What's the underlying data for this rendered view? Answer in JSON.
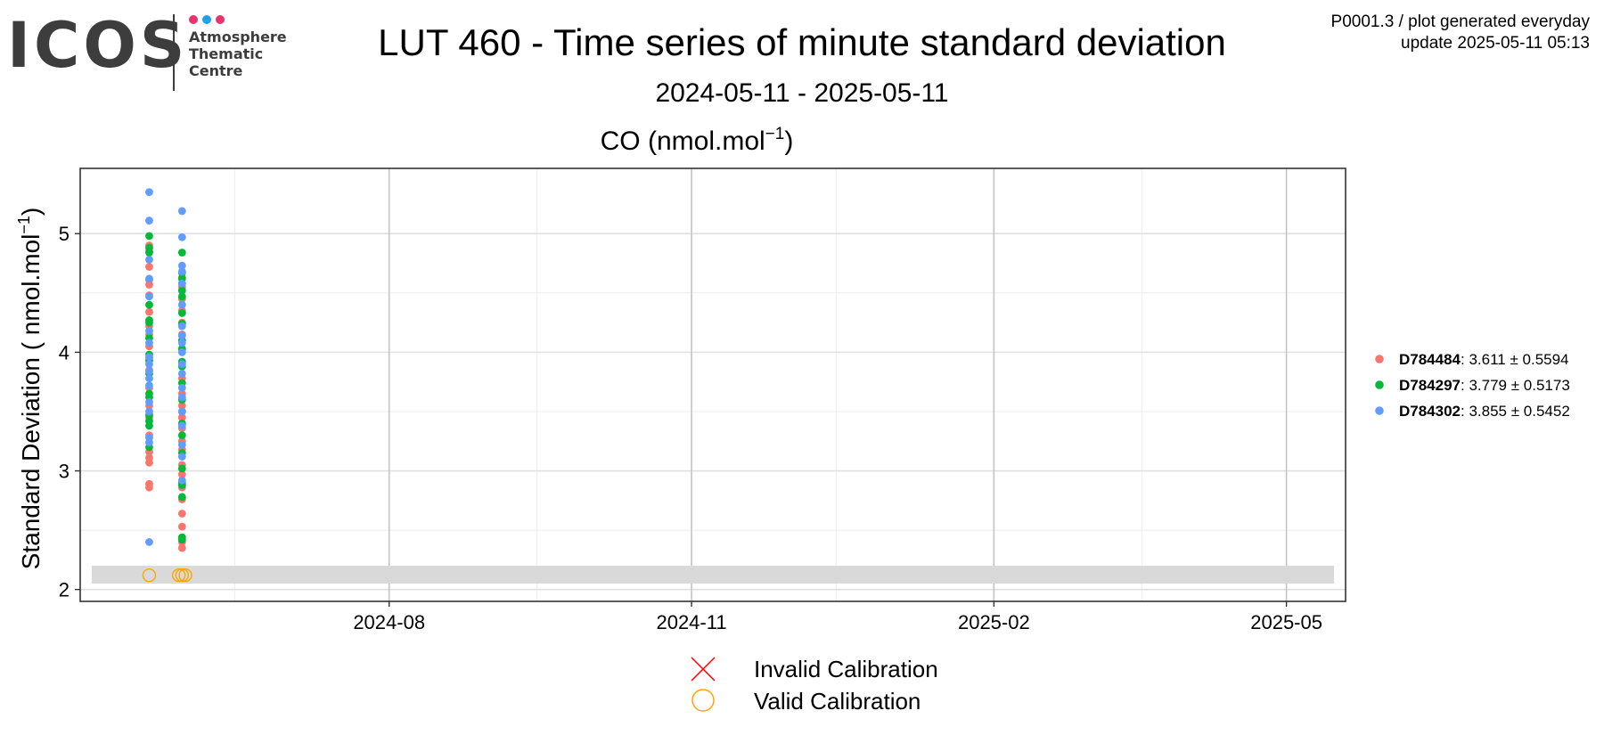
{
  "logo": {
    "word": "ICOS",
    "lines": [
      "Atmosphere",
      "Thematic",
      "Centre"
    ],
    "dot_colors": [
      "#e8336d",
      "#1aa3e8",
      "#e8336d"
    ]
  },
  "header": {
    "title": "LUT 460 - Time series of minute standard deviation",
    "subtitle": "2024-05-11 - 2025-05-11",
    "meta_line1": "P0001.3 / plot generated everyday",
    "meta_line2": "update  2025-05-11 05:13"
  },
  "chart_data": {
    "type": "scatter",
    "panel_title_main": "CO (nmol.mol",
    "panel_title_sup": "−1",
    "panel_title_end": ")",
    "ylabel_main": "Standard Deviation ( nmol.mol",
    "ylabel_sup": "−1",
    "ylabel_end": ")",
    "xlim": [
      "2024-05-11",
      "2025-05-11"
    ],
    "ylim": [
      1.9,
      5.55
    ],
    "x_ticks": [
      {
        "date": "2024-08-01",
        "label": "2024-08"
      },
      {
        "date": "2024-11-01",
        "label": "2024-11"
      },
      {
        "date": "2025-02-01",
        "label": "2025-02"
      },
      {
        "date": "2025-05-01",
        "label": "2025-05"
      }
    ],
    "x_minor_ticks": [
      "2024-06-15",
      "2024-09-15",
      "2024-12-15",
      "2025-03-18"
    ],
    "y_ticks": [
      2,
      3,
      4,
      5
    ],
    "y_minor_ticks": [
      2.5,
      3.5,
      4.5
    ],
    "grid": true,
    "legend_position": "right",
    "calibration_band": {
      "y_min": 2.05,
      "y_max": 2.2,
      "color": "#d9d9d9"
    },
    "series": [
      {
        "name": "D784484",
        "label_value": ": 3.611 ± 0.5594",
        "color": "#f8766d",
        "points": [
          {
            "x": "2024-05-20",
            "y": 2.86
          },
          {
            "x": "2024-05-20",
            "y": 2.89
          },
          {
            "x": "2024-05-20",
            "y": 3.07
          },
          {
            "x": "2024-05-20",
            "y": 3.11
          },
          {
            "x": "2024-05-20",
            "y": 3.16
          },
          {
            "x": "2024-05-20",
            "y": 3.3
          },
          {
            "x": "2024-05-20",
            "y": 3.45
          },
          {
            "x": "2024-05-20",
            "y": 3.55
          },
          {
            "x": "2024-05-20",
            "y": 3.7
          },
          {
            "x": "2024-05-20",
            "y": 3.85
          },
          {
            "x": "2024-05-20",
            "y": 3.95
          },
          {
            "x": "2024-05-20",
            "y": 4.05
          },
          {
            "x": "2024-05-20",
            "y": 4.15
          },
          {
            "x": "2024-05-20",
            "y": 4.22
          },
          {
            "x": "2024-05-20",
            "y": 4.34
          },
          {
            "x": "2024-05-20",
            "y": 4.48
          },
          {
            "x": "2024-05-20",
            "y": 4.57
          },
          {
            "x": "2024-05-20",
            "y": 4.61
          },
          {
            "x": "2024-05-20",
            "y": 4.72
          },
          {
            "x": "2024-05-20",
            "y": 4.85
          },
          {
            "x": "2024-05-20",
            "y": 4.9
          },
          {
            "x": "2024-05-30",
            "y": 2.35
          },
          {
            "x": "2024-05-30",
            "y": 2.4
          },
          {
            "x": "2024-05-30",
            "y": 2.53
          },
          {
            "x": "2024-05-30",
            "y": 2.64
          },
          {
            "x": "2024-05-30",
            "y": 2.76
          },
          {
            "x": "2024-05-30",
            "y": 2.86
          },
          {
            "x": "2024-05-30",
            "y": 2.97
          },
          {
            "x": "2024-05-30",
            "y": 3.05
          },
          {
            "x": "2024-05-30",
            "y": 3.18
          },
          {
            "x": "2024-05-30",
            "y": 3.25
          },
          {
            "x": "2024-05-30",
            "y": 3.36
          },
          {
            "x": "2024-05-30",
            "y": 3.45
          },
          {
            "x": "2024-05-30",
            "y": 3.55
          },
          {
            "x": "2024-05-30",
            "y": 3.65
          },
          {
            "x": "2024-05-30",
            "y": 3.78
          },
          {
            "x": "2024-05-30",
            "y": 3.9
          },
          {
            "x": "2024-05-30",
            "y": 4.02
          },
          {
            "x": "2024-05-30",
            "y": 4.15
          },
          {
            "x": "2024-05-30",
            "y": 4.25
          },
          {
            "x": "2024-05-30",
            "y": 4.35
          },
          {
            "x": "2024-05-30",
            "y": 4.45
          },
          {
            "x": "2024-05-30",
            "y": 4.55
          },
          {
            "x": "2024-05-30",
            "y": 4.63
          }
        ]
      },
      {
        "name": "D784297",
        "label_value": ": 3.779 ± 0.5173",
        "color": "#00ba38",
        "points": [
          {
            "x": "2024-05-20",
            "y": 3.2
          },
          {
            "x": "2024-05-20",
            "y": 3.38
          },
          {
            "x": "2024-05-20",
            "y": 3.42
          },
          {
            "x": "2024-05-20",
            "y": 3.47
          },
          {
            "x": "2024-05-20",
            "y": 3.62
          },
          {
            "x": "2024-05-20",
            "y": 3.65
          },
          {
            "x": "2024-05-20",
            "y": 3.82
          },
          {
            "x": "2024-05-20",
            "y": 3.93
          },
          {
            "x": "2024-05-20",
            "y": 3.98
          },
          {
            "x": "2024-05-20",
            "y": 4.12
          },
          {
            "x": "2024-05-20",
            "y": 4.25
          },
          {
            "x": "2024-05-20",
            "y": 4.27
          },
          {
            "x": "2024-05-20",
            "y": 4.4
          },
          {
            "x": "2024-05-20",
            "y": 4.84
          },
          {
            "x": "2024-05-20",
            "y": 4.88
          },
          {
            "x": "2024-05-20",
            "y": 4.98
          },
          {
            "x": "2024-05-30",
            "y": 2.42
          },
          {
            "x": "2024-05-30",
            "y": 2.44
          },
          {
            "x": "2024-05-30",
            "y": 2.78
          },
          {
            "x": "2024-05-30",
            "y": 2.88
          },
          {
            "x": "2024-05-30",
            "y": 2.9
          },
          {
            "x": "2024-05-30",
            "y": 3.02
          },
          {
            "x": "2024-05-30",
            "y": 3.15
          },
          {
            "x": "2024-05-30",
            "y": 3.3
          },
          {
            "x": "2024-05-30",
            "y": 3.4
          },
          {
            "x": "2024-05-30",
            "y": 3.5
          },
          {
            "x": "2024-05-30",
            "y": 3.6
          },
          {
            "x": "2024-05-30",
            "y": 3.74
          },
          {
            "x": "2024-05-30",
            "y": 3.88
          },
          {
            "x": "2024-05-30",
            "y": 3.92
          },
          {
            "x": "2024-05-30",
            "y": 4.03
          },
          {
            "x": "2024-05-30",
            "y": 4.1
          },
          {
            "x": "2024-05-30",
            "y": 4.24
          },
          {
            "x": "2024-05-30",
            "y": 4.33
          },
          {
            "x": "2024-05-30",
            "y": 4.47
          },
          {
            "x": "2024-05-30",
            "y": 4.52
          },
          {
            "x": "2024-05-30",
            "y": 4.58
          },
          {
            "x": "2024-05-30",
            "y": 4.62
          },
          {
            "x": "2024-05-30",
            "y": 4.67
          },
          {
            "x": "2024-05-30",
            "y": 4.84
          }
        ]
      },
      {
        "name": "D784302",
        "label_value": ": 3.855 ± 0.5452",
        "color": "#619cff",
        "points": [
          {
            "x": "2024-05-20",
            "y": 2.4
          },
          {
            "x": "2024-05-20",
            "y": 3.24
          },
          {
            "x": "2024-05-20",
            "y": 3.28
          },
          {
            "x": "2024-05-20",
            "y": 3.5
          },
          {
            "x": "2024-05-20",
            "y": 3.58
          },
          {
            "x": "2024-05-20",
            "y": 3.72
          },
          {
            "x": "2024-05-20",
            "y": 3.78
          },
          {
            "x": "2024-05-20",
            "y": 3.84
          },
          {
            "x": "2024-05-20",
            "y": 3.9
          },
          {
            "x": "2024-05-20",
            "y": 3.96
          },
          {
            "x": "2024-05-20",
            "y": 4.08
          },
          {
            "x": "2024-05-20",
            "y": 4.18
          },
          {
            "x": "2024-05-20",
            "y": 4.47
          },
          {
            "x": "2024-05-20",
            "y": 4.62
          },
          {
            "x": "2024-05-20",
            "y": 4.78
          },
          {
            "x": "2024-05-20",
            "y": 5.11
          },
          {
            "x": "2024-05-20",
            "y": 5.35
          },
          {
            "x": "2024-05-30",
            "y": 2.92
          },
          {
            "x": "2024-05-30",
            "y": 3.12
          },
          {
            "x": "2024-05-30",
            "y": 3.22
          },
          {
            "x": "2024-05-30",
            "y": 3.38
          },
          {
            "x": "2024-05-30",
            "y": 3.5
          },
          {
            "x": "2024-05-30",
            "y": 3.62
          },
          {
            "x": "2024-05-30",
            "y": 3.7
          },
          {
            "x": "2024-05-30",
            "y": 3.82
          },
          {
            "x": "2024-05-30",
            "y": 3.9
          },
          {
            "x": "2024-05-30",
            "y": 4.0
          },
          {
            "x": "2024-05-30",
            "y": 4.08
          },
          {
            "x": "2024-05-30",
            "y": 4.14
          },
          {
            "x": "2024-05-30",
            "y": 4.22
          },
          {
            "x": "2024-05-30",
            "y": 4.4
          },
          {
            "x": "2024-05-30",
            "y": 4.58
          },
          {
            "x": "2024-05-30",
            "y": 4.68
          },
          {
            "x": "2024-05-30",
            "y": 4.73
          },
          {
            "x": "2024-05-30",
            "y": 4.97
          },
          {
            "x": "2024-05-30",
            "y": 5.19
          }
        ]
      }
    ],
    "calibrations": {
      "valid_label": "Valid Calibration",
      "invalid_label": "Invalid Calibration",
      "valid_color": "#ffa500",
      "invalid_color": "#ff0000",
      "valid_points": [
        {
          "x": "2024-05-20",
          "y": 2.12
        },
        {
          "x": "2024-05-29",
          "y": 2.12
        },
        {
          "x": "2024-05-30",
          "y": 2.12
        },
        {
          "x": "2024-05-31",
          "y": 2.12
        }
      ]
    }
  }
}
